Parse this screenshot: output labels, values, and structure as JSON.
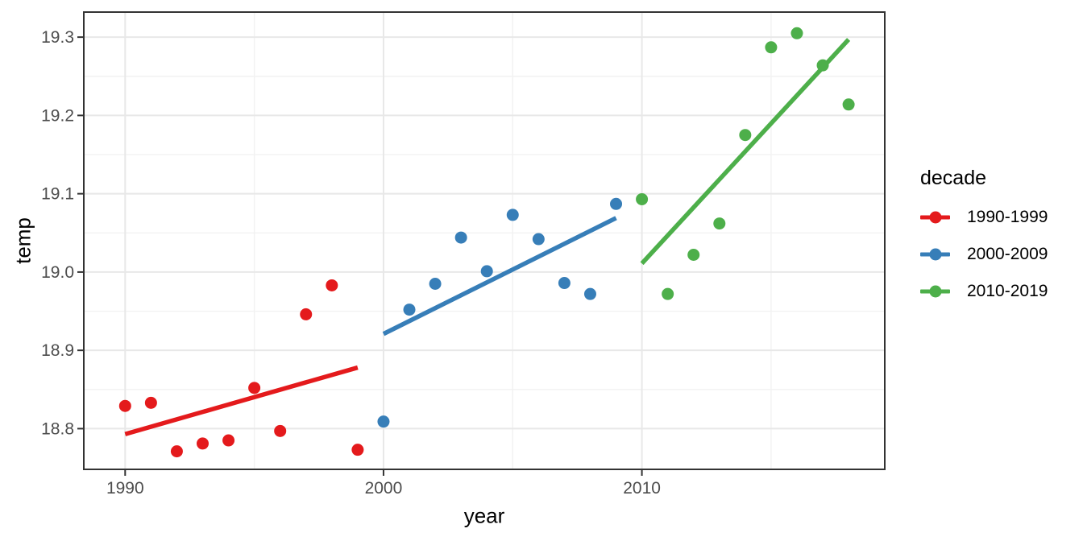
{
  "chart_data": {
    "type": "scatter",
    "title": "",
    "xlabel": "year",
    "ylabel": "temp",
    "xlim": [
      1988.4,
      2019.4
    ],
    "ylim": [
      18.748,
      19.332
    ],
    "x_tick_values": [
      1990,
      2000,
      2010
    ],
    "x_tick_labels": [
      "1990",
      "2000",
      "2010"
    ],
    "y_tick_values": [
      18.8,
      18.9,
      19.0,
      19.1,
      19.2,
      19.3
    ],
    "y_tick_labels": [
      "18.8",
      "18.9",
      "19.0",
      "19.1",
      "19.2",
      "19.3"
    ],
    "x_minor": [
      1995,
      2005,
      2015
    ],
    "y_minor": [
      18.85,
      18.95,
      19.05,
      19.15,
      19.25
    ],
    "grid": "on",
    "legend_position": "right",
    "series": [
      {
        "name": "1990-1999",
        "color": "#E41A1C",
        "x": [
          1990,
          1991,
          1992,
          1993,
          1994,
          1995,
          1996,
          1997,
          1998,
          1999
        ],
        "y": [
          18.829,
          18.833,
          18.771,
          18.781,
          18.785,
          18.852,
          18.797,
          18.946,
          18.983,
          18.773
        ],
        "trend": {
          "x": [
            1990,
            1999
          ],
          "y": [
            18.793,
            18.878
          ]
        }
      },
      {
        "name": "2000-2009",
        "color": "#377EB8",
        "x": [
          2000,
          2001,
          2002,
          2003,
          2004,
          2005,
          2006,
          2007,
          2008,
          2009
        ],
        "y": [
          18.809,
          18.952,
          18.985,
          19.044,
          19.001,
          19.073,
          19.042,
          18.986,
          18.972,
          19.087
        ],
        "trend": {
          "x": [
            2000,
            2009
          ],
          "y": [
            18.921,
            19.069
          ]
        }
      },
      {
        "name": "2010-2019",
        "color": "#4DAF4A",
        "x": [
          2010,
          2011,
          2012,
          2013,
          2014,
          2015,
          2016,
          2017,
          2018
        ],
        "y": [
          19.093,
          18.972,
          19.022,
          19.062,
          19.175,
          19.287,
          19.305,
          19.264,
          19.214
        ],
        "trend": {
          "x": [
            2010,
            2018
          ],
          "y": [
            19.011,
            19.297
          ]
        }
      }
    ]
  },
  "legend": {
    "title": "decade",
    "items": [
      {
        "label": "1990-1999",
        "color": "#E41A1C"
      },
      {
        "label": "2000-2009",
        "color": "#377EB8"
      },
      {
        "label": "2010-2019",
        "color": "#4DAF4A"
      }
    ]
  },
  "style_colors": {
    "panel_border": "#333333",
    "tick_mark": "#333333",
    "tick_label": "#4D4D4D",
    "grid_major": "#E8E8E8",
    "grid_minor": "#F2F2F2",
    "background": "#FFFFFF"
  }
}
